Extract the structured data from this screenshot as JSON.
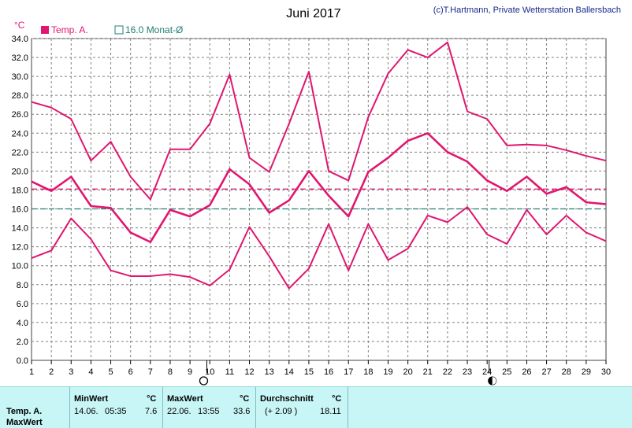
{
  "copyright": "(c)T.Hartmann, Private Wetterstation Ballersbach",
  "legend": {
    "series_label": "Temp. A.",
    "monthly_avg_label": "16.0 Monat-Ø"
  },
  "colors": {
    "series": "#e0166f",
    "avg_line": "#e0166f",
    "monthly_line": "#1f7f73",
    "grid": "#808080",
    "footer_bg": "#c8f5f5"
  },
  "chart_data": {
    "type": "line",
    "title": "Juni 2017",
    "ylabel": "°C",
    "x": [
      1,
      2,
      3,
      4,
      5,
      6,
      7,
      8,
      9,
      10,
      11,
      12,
      13,
      14,
      15,
      16,
      17,
      18,
      19,
      20,
      21,
      22,
      23,
      24,
      25,
      26,
      27,
      28,
      29,
      30
    ],
    "ylim": [
      0,
      34
    ],
    "yticks": [
      "0.0",
      "2.0",
      "4.0",
      "6.0",
      "8.0",
      "10.0",
      "12.0",
      "14.0",
      "16.0",
      "18.0",
      "20.0",
      "22.0",
      "24.0",
      "26.0",
      "28.0",
      "30.0",
      "32.0",
      "34.0"
    ],
    "grid": true,
    "series": [
      {
        "role": "max",
        "values": [
          27.3,
          26.7,
          25.5,
          21.1,
          23.1,
          19.4,
          17.0,
          22.3,
          22.3,
          25.0,
          30.2,
          21.4,
          19.9,
          25.0,
          30.5,
          20.0,
          19.0,
          25.7,
          30.3,
          32.8,
          32.0,
          33.6,
          26.3,
          25.5,
          22.7,
          22.8,
          22.7,
          22.2,
          21.6,
          21.1
        ]
      },
      {
        "role": "avg",
        "values": [
          18.9,
          17.9,
          19.4,
          16.3,
          16.1,
          13.5,
          12.5,
          15.9,
          15.2,
          16.4,
          20.2,
          18.6,
          15.6,
          16.9,
          20.0,
          17.4,
          15.2,
          19.9,
          21.4,
          23.2,
          24.0,
          22.0,
          21.0,
          19.0,
          17.9,
          19.4,
          17.6,
          18.3,
          16.7,
          16.5
        ]
      },
      {
        "role": "min",
        "values": [
          10.8,
          11.6,
          15.0,
          12.8,
          9.5,
          8.9,
          8.9,
          9.1,
          8.8,
          7.9,
          9.6,
          14.1,
          11.0,
          7.6,
          9.7,
          14.4,
          9.5,
          14.4,
          10.6,
          11.8,
          15.3,
          14.6,
          16.2,
          13.3,
          12.3,
          15.9,
          13.3,
          15.3,
          13.5,
          12.6
        ]
      }
    ],
    "reference_lines": [
      {
        "role": "month-average",
        "value": 18.1,
        "color": "#e0166f"
      },
      {
        "role": "monthly-normal",
        "value": 16.0,
        "color": "#1f7f73"
      }
    ],
    "moon_phases": [
      {
        "day": 9.85,
        "phase": "full"
      },
      {
        "day": 24.1,
        "phase": "new"
      }
    ]
  },
  "footer": {
    "row_label": "Temp. A.",
    "row2_label": "MaxWert",
    "min": {
      "header": "MinWert",
      "unit": "°C",
      "date": "14.06.",
      "time": "05:35",
      "value": "7.6"
    },
    "max": {
      "header": "MaxWert",
      "unit": "°C",
      "date": "22.06.",
      "time": "13:55",
      "value": "33.6"
    },
    "avg": {
      "header": "Durchschnitt",
      "unit": "°C",
      "deviation": "(+ 2.09 )",
      "value": "18.11"
    }
  }
}
